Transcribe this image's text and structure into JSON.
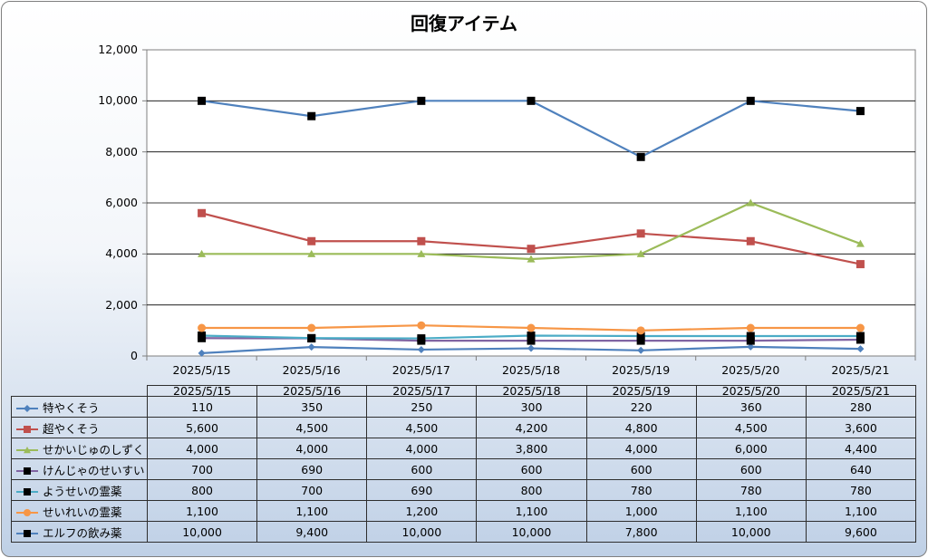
{
  "chart_data": {
    "type": "line",
    "title": "回復アイテム",
    "categories": [
      "2025/5/15",
      "2025/5/16",
      "2025/5/17",
      "2025/5/18",
      "2025/5/19",
      "2025/5/20",
      "2025/5/21"
    ],
    "ylim": [
      0,
      12000
    ],
    "yticks": [
      "0",
      "2,000",
      "4,000",
      "6,000",
      "8,000",
      "10,000",
      "12,000"
    ],
    "grid": true,
    "legend": "data-table",
    "series": [
      {
        "name": "特やくそう",
        "values": [
          110,
          350,
          250,
          300,
          220,
          360,
          280
        ],
        "labels": [
          "110",
          "350",
          "250",
          "300",
          "220",
          "360",
          "280"
        ],
        "color": "#4f81bd",
        "marker": "diamond",
        "marker_color": "#4f81bd"
      },
      {
        "name": "超やくそう",
        "values": [
          5600,
          4500,
          4500,
          4200,
          4800,
          4500,
          3600
        ],
        "labels": [
          "5,600",
          "4,500",
          "4,500",
          "4,200",
          "4,800",
          "4,500",
          "3,600"
        ],
        "color": "#c0504d",
        "marker": "square",
        "marker_color": "#c0504d"
      },
      {
        "name": "せかいじゅのしずく",
        "values": [
          4000,
          4000,
          4000,
          3800,
          4000,
          6000,
          4400
        ],
        "labels": [
          "4,000",
          "4,000",
          "4,000",
          "3,800",
          "4,000",
          "6,000",
          "4,400"
        ],
        "color": "#9bbb59",
        "marker": "triangle",
        "marker_color": "#9bbb59"
      },
      {
        "name": "けんじゃのせいすい",
        "values": [
          700,
          690,
          600,
          600,
          600,
          600,
          640
        ],
        "labels": [
          "700",
          "690",
          "600",
          "600",
          "600",
          "600",
          "640"
        ],
        "color": "#8064a2",
        "marker": "square",
        "marker_color": "#000000"
      },
      {
        "name": "ようせいの霊薬",
        "values": [
          800,
          700,
          690,
          800,
          780,
          780,
          780
        ],
        "labels": [
          "800",
          "700",
          "690",
          "800",
          "780",
          "780",
          "780"
        ],
        "color": "#4bacc6",
        "marker": "square",
        "marker_color": "#000000"
      },
      {
        "name": "せいれいの霊薬",
        "values": [
          1100,
          1100,
          1200,
          1100,
          1000,
          1100,
          1100
        ],
        "labels": [
          "1,100",
          "1,100",
          "1,200",
          "1,100",
          "1,000",
          "1,100",
          "1,100"
        ],
        "color": "#f79646",
        "marker": "circle",
        "marker_color": "#f79646"
      },
      {
        "name": "エルフの飲み薬",
        "values": [
          10000,
          9400,
          10000,
          10000,
          7800,
          10000,
          9600
        ],
        "labels": [
          "10,000",
          "9,400",
          "10,000",
          "10,000",
          "7,800",
          "10,000",
          "9,600"
        ],
        "color": "#4f81bd",
        "marker": "square",
        "marker_color": "#000000"
      }
    ]
  }
}
